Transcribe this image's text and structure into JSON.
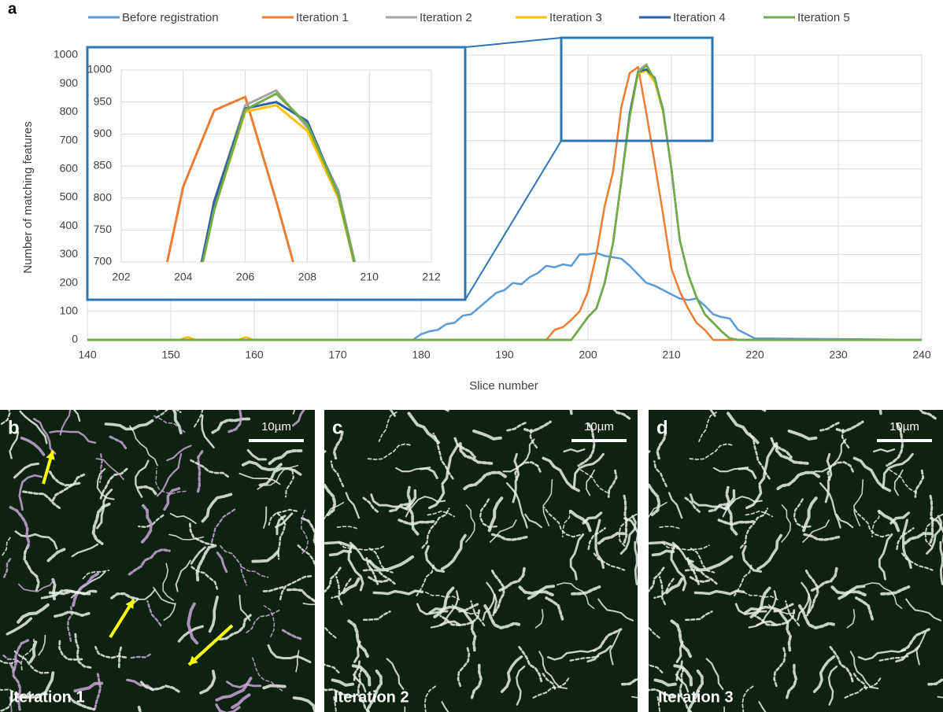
{
  "chart_data": {
    "type": "line",
    "panel_label": "a",
    "xlabel": "Slice number",
    "ylabel": "Number of matching features",
    "x": [
      140,
      151,
      152,
      153,
      158,
      159,
      160,
      170,
      179,
      180,
      181,
      182,
      183,
      184,
      185,
      186,
      187,
      188,
      189,
      190,
      191,
      192,
      193,
      194,
      195,
      196,
      197,
      198,
      199,
      200,
      201,
      202,
      203,
      204,
      205,
      206,
      207,
      208,
      209,
      210,
      211,
      212,
      213,
      214,
      215,
      216,
      217,
      218,
      219,
      220,
      240
    ],
    "xlim": [
      140,
      240
    ],
    "xticks": [
      140,
      150,
      160,
      170,
      180,
      190,
      200,
      210,
      220,
      230,
      240
    ],
    "ylim": [
      0,
      1000
    ],
    "yticks": [
      0,
      100,
      200,
      300,
      400,
      500,
      600,
      700,
      800,
      900,
      1000
    ],
    "grid": true,
    "legend": "top",
    "series": [
      {
        "name": "Before registration",
        "color": "#5b9bd5",
        "values": [
          0,
          0,
          0,
          0,
          0,
          0,
          0,
          0,
          0,
          20,
          30,
          35,
          55,
          60,
          85,
          90,
          115,
          140,
          165,
          175,
          200,
          195,
          220,
          235,
          260,
          255,
          265,
          260,
          300,
          300,
          305,
          295,
          290,
          285,
          260,
          230,
          200,
          190,
          175,
          160,
          145,
          140,
          145,
          120,
          90,
          80,
          75,
          35,
          20,
          5,
          0
        ]
      },
      {
        "name": "Iteration 1",
        "color": "#ed7d31",
        "values": [
          0,
          0,
          0,
          0,
          0,
          0,
          0,
          0,
          0,
          0,
          0,
          0,
          0,
          0,
          0,
          0,
          0,
          0,
          0,
          0,
          0,
          0,
          0,
          0,
          0,
          35,
          45,
          70,
          100,
          170,
          300,
          470,
          590,
          818,
          937,
          958,
          795,
          620,
          440,
          250,
          170,
          110,
          60,
          35,
          0,
          0,
          0,
          0,
          0,
          0,
          0
        ]
      },
      {
        "name": "Iteration 2",
        "color": "#a5a5a5",
        "values": [
          0,
          0,
          0,
          0,
          0,
          0,
          0,
          0,
          0,
          0,
          0,
          0,
          0,
          0,
          0,
          0,
          0,
          0,
          0,
          0,
          0,
          0,
          0,
          0,
          0,
          0,
          0,
          0,
          40,
          80,
          110,
          200,
          340,
          560,
          795,
          945,
          968,
          910,
          812,
          600,
          350,
          230,
          150,
          90,
          60,
          30,
          5,
          0,
          0,
          0,
          0
        ]
      },
      {
        "name": "Iteration 3",
        "color": "#ffc000",
        "values": [
          0,
          0,
          10,
          0,
          0,
          10,
          0,
          0,
          0,
          0,
          0,
          0,
          0,
          0,
          0,
          0,
          0,
          0,
          0,
          0,
          0,
          0,
          0,
          0,
          0,
          0,
          0,
          0,
          40,
          80,
          110,
          200,
          340,
          560,
          782,
          935,
          945,
          905,
          800,
          600,
          350,
          230,
          150,
          90,
          60,
          30,
          5,
          0,
          0,
          0,
          0
        ]
      },
      {
        "name": "Iteration 4",
        "color": "#2e5fa8",
        "values": [
          0,
          0,
          0,
          0,
          0,
          0,
          0,
          0,
          0,
          0,
          0,
          0,
          0,
          0,
          0,
          0,
          0,
          0,
          0,
          0,
          0,
          0,
          0,
          0,
          0,
          0,
          0,
          0,
          40,
          80,
          110,
          200,
          340,
          560,
          795,
          940,
          950,
          920,
          805,
          600,
          350,
          230,
          150,
          90,
          60,
          30,
          5,
          0,
          0,
          0,
          0
        ]
      },
      {
        "name": "Iteration 5",
        "color": "#70ad47",
        "values": [
          0,
          0,
          0,
          0,
          0,
          0,
          0,
          0,
          0,
          0,
          0,
          0,
          0,
          0,
          0,
          0,
          0,
          0,
          0,
          0,
          0,
          0,
          0,
          0,
          0,
          0,
          0,
          0,
          40,
          80,
          110,
          200,
          340,
          560,
          782,
          938,
          963,
          915,
          805,
          600,
          350,
          230,
          150,
          90,
          60,
          30,
          5,
          0,
          0,
          0,
          0
        ]
      }
    ],
    "inset": {
      "xlim": [
        202,
        212
      ],
      "xticks": [
        202,
        204,
        206,
        208,
        210,
        212
      ],
      "ylim": [
        700,
        1000
      ],
      "yticks": [
        700,
        750,
        800,
        850,
        900,
        950,
        1000
      ]
    }
  },
  "image_panels": [
    {
      "letter": "b",
      "scale_bar": "10µm",
      "caption": "Iteration 1"
    },
    {
      "letter": "c",
      "scale_bar": "10µm",
      "caption": "Iteration 2"
    },
    {
      "letter": "d",
      "scale_bar": "10µm",
      "caption": "Iteration 3"
    }
  ]
}
